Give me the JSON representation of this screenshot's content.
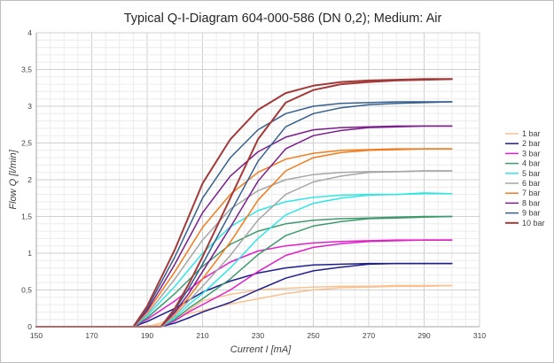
{
  "chart_data": {
    "type": "line",
    "title": "Typical Q-I-Diagram 604-000-586 (DN 0,2); Medium: Air",
    "xlabel": "Current I [mA]",
    "ylabel": "Flow Q [l/min]",
    "xlim": [
      150,
      310
    ],
    "ylim": [
      0,
      4
    ],
    "x_ticks": [
      "150",
      "170",
      "190",
      "210",
      "230",
      "250",
      "270",
      "290",
      "310"
    ],
    "y_ticks": [
      "0",
      "0,5",
      "1",
      "1,5",
      "2",
      "2,5",
      "3",
      "3,5",
      "4"
    ],
    "grid": true,
    "legend_position": "right",
    "hysteresis": true,
    "series": [
      {
        "name": "1 bar",
        "color": "#fac090",
        "up": [
          [
            150,
            0
          ],
          [
            190,
            0
          ],
          [
            195,
            0.05
          ],
          [
            200,
            0.14
          ],
          [
            210,
            0.22
          ],
          [
            220,
            0.31
          ],
          [
            230,
            0.38
          ],
          [
            240,
            0.45
          ],
          [
            250,
            0.5
          ],
          [
            260,
            0.53
          ],
          [
            270,
            0.54
          ],
          [
            280,
            0.55
          ],
          [
            290,
            0.55
          ],
          [
            300,
            0.56
          ]
        ],
        "down": [
          [
            300,
            0.56
          ],
          [
            290,
            0.56
          ],
          [
            280,
            0.56
          ],
          [
            270,
            0.55
          ],
          [
            260,
            0.55
          ],
          [
            250,
            0.54
          ],
          [
            240,
            0.52
          ],
          [
            230,
            0.5
          ],
          [
            220,
            0.44
          ],
          [
            210,
            0.35
          ],
          [
            205,
            0.22
          ],
          [
            200,
            0.08
          ],
          [
            195,
            0.02
          ],
          [
            185,
            0
          ],
          [
            150,
            0
          ]
        ]
      },
      {
        "name": "2 bar",
        "color": "#1f1f8f",
        "up": [
          [
            150,
            0
          ],
          [
            195,
            0
          ],
          [
            200,
            0.05
          ],
          [
            205,
            0.12
          ],
          [
            210,
            0.2
          ],
          [
            220,
            0.33
          ],
          [
            230,
            0.5
          ],
          [
            240,
            0.66
          ],
          [
            250,
            0.76
          ],
          [
            260,
            0.81
          ],
          [
            270,
            0.85
          ],
          [
            280,
            0.86
          ],
          [
            290,
            0.86
          ],
          [
            300,
            0.86
          ]
        ],
        "down": [
          [
            300,
            0.86
          ],
          [
            290,
            0.86
          ],
          [
            280,
            0.86
          ],
          [
            270,
            0.86
          ],
          [
            260,
            0.85
          ],
          [
            250,
            0.84
          ],
          [
            240,
            0.8
          ],
          [
            230,
            0.73
          ],
          [
            220,
            0.62
          ],
          [
            210,
            0.47
          ],
          [
            200,
            0.25
          ],
          [
            190,
            0.07
          ],
          [
            185,
            0
          ],
          [
            150,
            0
          ]
        ]
      },
      {
        "name": "3 bar",
        "color": "#e020c8",
        "up": [
          [
            150,
            0
          ],
          [
            195,
            0
          ],
          [
            200,
            0.08
          ],
          [
            205,
            0.2
          ],
          [
            210,
            0.3
          ],
          [
            220,
            0.5
          ],
          [
            230,
            0.75
          ],
          [
            240,
            0.97
          ],
          [
            250,
            1.08
          ],
          [
            260,
            1.13
          ],
          [
            270,
            1.16
          ],
          [
            280,
            1.17
          ],
          [
            290,
            1.18
          ],
          [
            300,
            1.18
          ]
        ],
        "down": [
          [
            300,
            1.18
          ],
          [
            290,
            1.18
          ],
          [
            280,
            1.18
          ],
          [
            270,
            1.17
          ],
          [
            260,
            1.16
          ],
          [
            250,
            1.14
          ],
          [
            240,
            1.1
          ],
          [
            230,
            1.03
          ],
          [
            220,
            0.88
          ],
          [
            210,
            0.65
          ],
          [
            200,
            0.35
          ],
          [
            190,
            0.1
          ],
          [
            185,
            0
          ],
          [
            150,
            0
          ]
        ]
      },
      {
        "name": "4 bar",
        "color": "#3e9a6c",
        "up": [
          [
            150,
            0
          ],
          [
            195,
            0
          ],
          [
            200,
            0.1
          ],
          [
            205,
            0.25
          ],
          [
            210,
            0.38
          ],
          [
            220,
            0.65
          ],
          [
            230,
            0.98
          ],
          [
            240,
            1.24
          ],
          [
            250,
            1.37
          ],
          [
            260,
            1.43
          ],
          [
            270,
            1.47
          ],
          [
            280,
            1.48
          ],
          [
            290,
            1.49
          ],
          [
            300,
            1.5
          ]
        ],
        "down": [
          [
            300,
            1.5
          ],
          [
            290,
            1.5
          ],
          [
            280,
            1.49
          ],
          [
            270,
            1.48
          ],
          [
            260,
            1.47
          ],
          [
            250,
            1.45
          ],
          [
            240,
            1.4
          ],
          [
            230,
            1.3
          ],
          [
            220,
            1.12
          ],
          [
            210,
            0.82
          ],
          [
            200,
            0.45
          ],
          [
            190,
            0.12
          ],
          [
            185,
            0
          ],
          [
            150,
            0
          ]
        ]
      },
      {
        "name": "5 bar",
        "color": "#33e6e6",
        "up": [
          [
            150,
            0
          ],
          [
            195,
            0
          ],
          [
            200,
            0.12
          ],
          [
            205,
            0.3
          ],
          [
            210,
            0.45
          ],
          [
            220,
            0.8
          ],
          [
            230,
            1.2
          ],
          [
            240,
            1.52
          ],
          [
            250,
            1.68
          ],
          [
            260,
            1.75
          ],
          [
            270,
            1.79
          ],
          [
            280,
            1.8
          ],
          [
            290,
            1.81
          ],
          [
            300,
            1.81
          ]
        ],
        "down": [
          [
            300,
            1.81
          ],
          [
            290,
            1.82
          ],
          [
            280,
            1.8
          ],
          [
            270,
            1.8
          ],
          [
            260,
            1.79
          ],
          [
            250,
            1.76
          ],
          [
            240,
            1.7
          ],
          [
            230,
            1.58
          ],
          [
            220,
            1.36
          ],
          [
            210,
            1.0
          ],
          [
            200,
            0.55
          ],
          [
            190,
            0.15
          ],
          [
            185,
            0
          ],
          [
            150,
            0
          ]
        ]
      },
      {
        "name": "6 bar",
        "color": "#a6a6a6",
        "up": [
          [
            150,
            0
          ],
          [
            195,
            0
          ],
          [
            200,
            0.15
          ],
          [
            205,
            0.35
          ],
          [
            210,
            0.55
          ],
          [
            220,
            0.97
          ],
          [
            230,
            1.45
          ],
          [
            240,
            1.8
          ],
          [
            250,
            1.97
          ],
          [
            260,
            2.05
          ],
          [
            270,
            2.1
          ],
          [
            280,
            2.11
          ],
          [
            290,
            2.12
          ],
          [
            300,
            2.12
          ]
        ],
        "down": [
          [
            300,
            2.12
          ],
          [
            290,
            2.12
          ],
          [
            280,
            2.11
          ],
          [
            270,
            2.11
          ],
          [
            260,
            2.1
          ],
          [
            250,
            2.07
          ],
          [
            240,
            2.0
          ],
          [
            230,
            1.85
          ],
          [
            220,
            1.6
          ],
          [
            210,
            1.18
          ],
          [
            200,
            0.65
          ],
          [
            190,
            0.17
          ],
          [
            185,
            0
          ],
          [
            150,
            0
          ]
        ]
      },
      {
        "name": "7 bar",
        "color": "#f07c1e",
        "up": [
          [
            150,
            0
          ],
          [
            195,
            0
          ],
          [
            200,
            0.18
          ],
          [
            205,
            0.4
          ],
          [
            210,
            0.65
          ],
          [
            220,
            1.15
          ],
          [
            230,
            1.72
          ],
          [
            240,
            2.12
          ],
          [
            250,
            2.3
          ],
          [
            260,
            2.37
          ],
          [
            270,
            2.4
          ],
          [
            280,
            2.41
          ],
          [
            290,
            2.42
          ],
          [
            300,
            2.42
          ]
        ],
        "down": [
          [
            300,
            2.42
          ],
          [
            290,
            2.42
          ],
          [
            280,
            2.42
          ],
          [
            270,
            2.41
          ],
          [
            260,
            2.4
          ],
          [
            250,
            2.36
          ],
          [
            240,
            2.28
          ],
          [
            230,
            2.1
          ],
          [
            220,
            1.8
          ],
          [
            210,
            1.35
          ],
          [
            200,
            0.75
          ],
          [
            190,
            0.2
          ],
          [
            185,
            0
          ],
          [
            150,
            0
          ]
        ]
      },
      {
        "name": "8 bar",
        "color": "#7a1e8c",
        "up": [
          [
            150,
            0
          ],
          [
            195,
            0
          ],
          [
            200,
            0.2
          ],
          [
            205,
            0.45
          ],
          [
            210,
            0.75
          ],
          [
            220,
            1.35
          ],
          [
            230,
            1.98
          ],
          [
            240,
            2.42
          ],
          [
            250,
            2.6
          ],
          [
            260,
            2.67
          ],
          [
            270,
            2.71
          ],
          [
            280,
            2.72
          ],
          [
            290,
            2.73
          ],
          [
            300,
            2.73
          ]
        ],
        "down": [
          [
            300,
            2.73
          ],
          [
            290,
            2.73
          ],
          [
            280,
            2.73
          ],
          [
            270,
            2.72
          ],
          [
            260,
            2.71
          ],
          [
            250,
            2.68
          ],
          [
            240,
            2.58
          ],
          [
            230,
            2.38
          ],
          [
            220,
            2.05
          ],
          [
            210,
            1.55
          ],
          [
            200,
            0.85
          ],
          [
            190,
            0.22
          ],
          [
            185,
            0
          ],
          [
            150,
            0
          ]
        ]
      },
      {
        "name": "9 bar",
        "color": "#355f8c",
        "up": [
          [
            150,
            0
          ],
          [
            195,
            0
          ],
          [
            200,
            0.23
          ],
          [
            205,
            0.52
          ],
          [
            210,
            0.85
          ],
          [
            220,
            1.55
          ],
          [
            230,
            2.25
          ],
          [
            240,
            2.72
          ],
          [
            250,
            2.9
          ],
          [
            260,
            2.98
          ],
          [
            270,
            3.02
          ],
          [
            280,
            3.04
          ],
          [
            290,
            3.05
          ],
          [
            300,
            3.06
          ]
        ],
        "down": [
          [
            300,
            3.06
          ],
          [
            290,
            3.06
          ],
          [
            280,
            3.06
          ],
          [
            270,
            3.05
          ],
          [
            260,
            3.04
          ],
          [
            250,
            3.0
          ],
          [
            240,
            2.9
          ],
          [
            230,
            2.68
          ],
          [
            220,
            2.3
          ],
          [
            210,
            1.75
          ],
          [
            200,
            0.95
          ],
          [
            190,
            0.25
          ],
          [
            185,
            0
          ],
          [
            150,
            0
          ]
        ]
      },
      {
        "name": "10 bar",
        "color": "#a33a3a",
        "up": [
          [
            150,
            0
          ],
          [
            195,
            0
          ],
          [
            200,
            0.25
          ],
          [
            205,
            0.58
          ],
          [
            210,
            0.95
          ],
          [
            220,
            1.75
          ],
          [
            230,
            2.55
          ],
          [
            240,
            3.05
          ],
          [
            250,
            3.22
          ],
          [
            260,
            3.3
          ],
          [
            270,
            3.33
          ],
          [
            280,
            3.35
          ],
          [
            290,
            3.36
          ],
          [
            300,
            3.37
          ]
        ],
        "down": [
          [
            300,
            3.37
          ],
          [
            290,
            3.37
          ],
          [
            280,
            3.36
          ],
          [
            270,
            3.35
          ],
          [
            260,
            3.33
          ],
          [
            250,
            3.28
          ],
          [
            240,
            3.18
          ],
          [
            230,
            2.95
          ],
          [
            220,
            2.55
          ],
          [
            210,
            1.95
          ],
          [
            200,
            1.05
          ],
          [
            190,
            0.28
          ],
          [
            185,
            0
          ],
          [
            150,
            0
          ]
        ]
      }
    ]
  }
}
